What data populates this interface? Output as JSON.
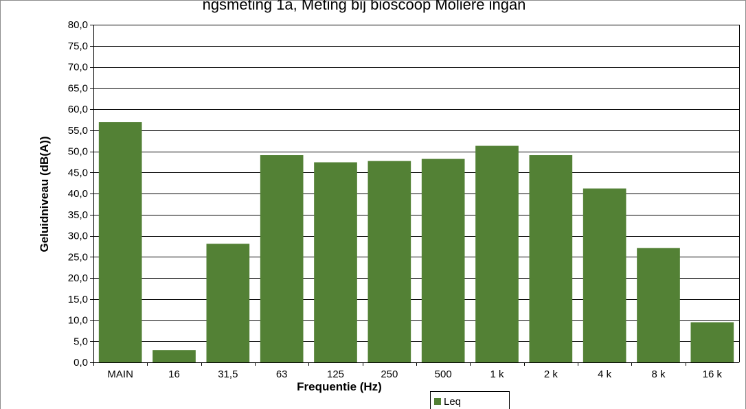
{
  "header_text": "ngsmeting 1a, Meting bij bioscoop Moliere ingan",
  "chart_data": {
    "type": "bar",
    "categories": [
      "MAIN",
      "16",
      "31,5",
      "63",
      "125",
      "250",
      "500",
      "1 k",
      "2 k",
      "4 k",
      "8 k",
      "16 k"
    ],
    "series": [
      {
        "name": "Leq",
        "values": [
          56.9,
          2.9,
          28.1,
          49.1,
          47.4,
          47.7,
          48.2,
          51.3,
          49.1,
          41.2,
          27.1,
          9.5
        ]
      }
    ],
    "xlabel": "Frequentie (Hz)",
    "ylabel": "Geluidniveau (dB(A))",
    "ylim": [
      0,
      80
    ],
    "ytick_step": 5,
    "ytick_labels": [
      "0,0",
      "5,0",
      "10,0",
      "15,0",
      "20,0",
      "25,0",
      "30,0",
      "35,0",
      "40,0",
      "45,0",
      "50,0",
      "55,0",
      "60,0",
      "65,0",
      "70,0",
      "75,0",
      "80,0"
    ],
    "grid": true,
    "legend_position": "bottom-center",
    "colors": {
      "bar": "#538135",
      "grid": "#000000",
      "border": "#8c8c8c"
    }
  }
}
